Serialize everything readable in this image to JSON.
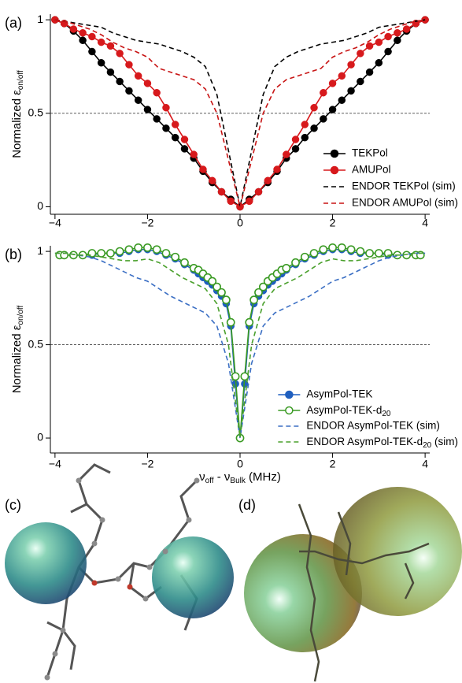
{
  "chart_data": [
    {
      "type": "line",
      "panel_label": "(a)",
      "ylabel": [
        "Normalized ε",
        "on/off"
      ],
      "xlim": [
        -4.1,
        4.1
      ],
      "ylim": [
        -0.04,
        1.03
      ],
      "xticks": [
        {
          "value": -4,
          "label": "−4"
        },
        {
          "value": -2,
          "label": "−2"
        },
        0,
        2,
        4
      ],
      "yticks": [
        0,
        0.5,
        1
      ],
      "reference_line": 0.5,
      "legend": "lower right",
      "series": [
        {
          "name": "TEKPol",
          "color": "#000000",
          "style": "solid",
          "marker": "filled",
          "x": [
            -4,
            -3.8,
            -3.6,
            -3.4,
            -3.2,
            -3,
            -2.8,
            -2.6,
            -2.4,
            -2.2,
            -2,
            -1.8,
            -1.6,
            -1.4,
            -1.2,
            -1,
            -0.8,
            -0.6,
            -0.4,
            -0.2,
            0,
            0.2,
            0.4,
            0.6,
            0.8,
            1,
            1.2,
            1.4,
            1.6,
            1.8,
            2,
            2.2,
            2.4,
            2.6,
            2.8,
            3,
            3.2,
            3.4,
            3.6,
            3.8,
            4
          ],
          "values": [
            1,
            0.98,
            0.94,
            0.89,
            0.83,
            0.77,
            0.72,
            0.67,
            0.62,
            0.57,
            0.52,
            0.47,
            0.42,
            0.37,
            0.31,
            0.26,
            0.19,
            0.13,
            0.08,
            0.04,
            0,
            0.04,
            0.08,
            0.13,
            0.19,
            0.26,
            0.31,
            0.37,
            0.42,
            0.47,
            0.52,
            0.57,
            0.62,
            0.67,
            0.72,
            0.77,
            0.83,
            0.89,
            0.94,
            0.98,
            1
          ]
        },
        {
          "name": "AMUPol",
          "color": "#d7191c",
          "style": "solid",
          "marker": "filled",
          "x": [
            -4,
            -3.8,
            -3.6,
            -3.4,
            -3.2,
            -3,
            -2.8,
            -2.6,
            -2.4,
            -2.2,
            -2,
            -1.8,
            -1.6,
            -1.4,
            -1.2,
            -1,
            -0.8,
            -0.6,
            -0.4,
            -0.2,
            0,
            0.2,
            0.4,
            0.6,
            0.8,
            1,
            1.2,
            1.4,
            1.6,
            1.8,
            2,
            2.2,
            2.4,
            2.6,
            2.8,
            3,
            3.2,
            3.4,
            3.6,
            3.8,
            4
          ],
          "values": [
            1,
            0.98,
            0.95,
            0.93,
            0.91,
            0.88,
            0.86,
            0.82,
            0.76,
            0.7,
            0.66,
            0.61,
            0.53,
            0.44,
            0.36,
            0.28,
            0.2,
            0.14,
            0.08,
            0.03,
            0,
            0.03,
            0.08,
            0.14,
            0.2,
            0.28,
            0.36,
            0.44,
            0.53,
            0.61,
            0.66,
            0.7,
            0.76,
            0.82,
            0.86,
            0.88,
            0.91,
            0.93,
            0.95,
            0.98,
            1
          ]
        },
        {
          "name": "ENDOR TEKPol (sim)",
          "color": "#000000",
          "style": "dashed",
          "marker": "none",
          "x": [
            -4,
            -3.75,
            -3.5,
            -3.25,
            -3,
            -2.75,
            -2.5,
            -2.25,
            -2,
            -1.75,
            -1.5,
            -1.25,
            -1,
            -0.75,
            -0.5,
            -0.25,
            0,
            0.25,
            0.5,
            0.75,
            1,
            1.25,
            1.5,
            1.75,
            2,
            2.25,
            2.5,
            2.75,
            3,
            3.25,
            3.5,
            3.75,
            4
          ],
          "values": [
            1,
            0.99,
            0.98,
            0.97,
            0.96,
            0.93,
            0.91,
            0.89,
            0.88,
            0.87,
            0.85,
            0.83,
            0.8,
            0.75,
            0.6,
            0.3,
            0,
            0.3,
            0.6,
            0.75,
            0.8,
            0.83,
            0.85,
            0.87,
            0.88,
            0.89,
            0.91,
            0.93,
            0.96,
            0.97,
            0.98,
            0.99,
            1
          ]
        },
        {
          "name": "ENDOR AMUPol (sim)",
          "color": "#c81414",
          "style": "dashed",
          "marker": "none",
          "x": [
            -4,
            -3.75,
            -3.5,
            -3.25,
            -3,
            -2.75,
            -2.5,
            -2.25,
            -2,
            -1.75,
            -1.5,
            -1.25,
            -1,
            -0.75,
            -0.5,
            -0.25,
            0,
            0.25,
            0.5,
            0.75,
            1,
            1.25,
            1.5,
            1.75,
            2,
            2.25,
            2.5,
            2.75,
            3,
            3.25,
            3.5,
            3.75,
            4
          ],
          "values": [
            1,
            0.99,
            0.97,
            0.95,
            0.92,
            0.88,
            0.85,
            0.83,
            0.8,
            0.74,
            0.72,
            0.7,
            0.68,
            0.63,
            0.5,
            0.25,
            0,
            0.25,
            0.5,
            0.63,
            0.68,
            0.7,
            0.72,
            0.74,
            0.8,
            0.83,
            0.85,
            0.88,
            0.92,
            0.95,
            0.97,
            0.99,
            1
          ]
        }
      ]
    },
    {
      "type": "line",
      "panel_label": "(b)",
      "ylabel": [
        "Normalized ε",
        "on/off"
      ],
      "xlabel": [
        "ν",
        "off",
        " - ν",
        "Bulk",
        " (MHz)"
      ],
      "xlim": [
        -4.1,
        4.1
      ],
      "ylim": [
        -0.08,
        1.03
      ],
      "xticks": [
        {
          "value": -4,
          "label": "−4"
        },
        {
          "value": -2,
          "label": "−2"
        },
        0,
        2,
        4
      ],
      "yticks": [
        0,
        0.5,
        1
      ],
      "reference_line": 0.5,
      "legend": "lower right",
      "series": [
        {
          "name": "AsymPol-TEK",
          "color": "#1f5fbf",
          "style": "solid",
          "marker": "filled",
          "x": [
            -3.9,
            -3.8,
            -3.6,
            -3.4,
            -3.2,
            -3,
            -2.8,
            -2.6,
            -2.4,
            -2.2,
            -2,
            -1.8,
            -1.6,
            -1.4,
            -1.2,
            -1,
            -0.9,
            -0.8,
            -0.7,
            -0.6,
            -0.5,
            -0.4,
            -0.3,
            -0.2,
            -0.1,
            0,
            0.1,
            0.2,
            0.3,
            0.4,
            0.5,
            0.6,
            0.7,
            0.8,
            0.9,
            1,
            1.2,
            1.4,
            1.6,
            1.8,
            2,
            2.2,
            2.4,
            2.6,
            2.8,
            3,
            3.2,
            3.4,
            3.6,
            3.8,
            3.9
          ],
          "values": [
            0.98,
            0.98,
            0.98,
            0.98,
            0.98,
            0.99,
            0.99,
            0.99,
            1,
            1.01,
            1.01,
            1,
            0.98,
            0.96,
            0.93,
            0.9,
            0.88,
            0.86,
            0.84,
            0.82,
            0.79,
            0.76,
            0.72,
            0.6,
            0.29,
            0,
            0.29,
            0.6,
            0.72,
            0.76,
            0.79,
            0.82,
            0.84,
            0.86,
            0.88,
            0.9,
            0.93,
            0.96,
            0.98,
            1,
            1.01,
            1.01,
            1,
            0.99,
            0.99,
            0.99,
            0.98,
            0.98,
            0.98,
            0.98,
            0.98
          ]
        },
        {
          "name": [
            "AsymPol-TEK-d",
            "20"
          ],
          "color": "#3a9a23",
          "style": "solid",
          "marker": "open",
          "x": [
            -3.9,
            -3.8,
            -3.6,
            -3.4,
            -3.2,
            -3,
            -2.8,
            -2.6,
            -2.4,
            -2.2,
            -2,
            -1.8,
            -1.6,
            -1.4,
            -1.2,
            -1,
            -0.9,
            -0.8,
            -0.7,
            -0.6,
            -0.5,
            -0.4,
            -0.3,
            -0.2,
            -0.1,
            0,
            0.1,
            0.2,
            0.3,
            0.4,
            0.5,
            0.6,
            0.7,
            0.8,
            0.9,
            1,
            1.2,
            1.4,
            1.6,
            1.8,
            2,
            2.2,
            2.4,
            2.6,
            2.8,
            3,
            3.2,
            3.4,
            3.6,
            3.8,
            3.9
          ],
          "values": [
            0.98,
            0.98,
            0.98,
            0.98,
            0.99,
            0.99,
            0.99,
            1,
            1.01,
            1.02,
            1.02,
            1.01,
            0.99,
            0.97,
            0.94,
            0.91,
            0.9,
            0.88,
            0.86,
            0.84,
            0.81,
            0.78,
            0.74,
            0.62,
            0.33,
            0,
            0.33,
            0.62,
            0.74,
            0.78,
            0.81,
            0.84,
            0.86,
            0.88,
            0.9,
            0.91,
            0.94,
            0.97,
            0.99,
            1.01,
            1.02,
            1.02,
            1.01,
            1,
            0.99,
            0.99,
            0.99,
            0.98,
            0.98,
            0.98,
            0.98
          ]
        },
        {
          "name": "ENDOR AsymPol-TEK (sim)",
          "color": "#3b6fc4",
          "style": "dashed",
          "marker": "none",
          "x": [
            -4,
            -3.75,
            -3.5,
            -3.25,
            -3,
            -2.75,
            -2.5,
            -2.25,
            -2,
            -1.75,
            -1.5,
            -1.25,
            -1,
            -0.75,
            -0.5,
            -0.25,
            0,
            0.25,
            0.5,
            0.75,
            1,
            1.25,
            1.5,
            1.75,
            2,
            2.25,
            2.5,
            2.75,
            3,
            3.25,
            3.5,
            3.75,
            4
          ],
          "values": [
            0.99,
            0.99,
            0.98,
            0.97,
            0.95,
            0.92,
            0.89,
            0.86,
            0.84,
            0.8,
            0.76,
            0.73,
            0.7,
            0.67,
            0.6,
            0.4,
            0,
            0.4,
            0.6,
            0.67,
            0.7,
            0.73,
            0.76,
            0.8,
            0.84,
            0.86,
            0.89,
            0.92,
            0.95,
            0.97,
            0.98,
            0.99,
            0.99
          ]
        },
        {
          "name": [
            "ENDOR AsymPol-TEK-d",
            "20",
            " (sim)"
          ],
          "color": "#4aa02c",
          "style": "dashed",
          "marker": "none",
          "x": [
            -4,
            -3.75,
            -3.5,
            -3.25,
            -3,
            -2.75,
            -2.5,
            -2.25,
            -2,
            -1.75,
            -1.5,
            -1.25,
            -1,
            -0.75,
            -0.5,
            -0.25,
            0,
            0.25,
            0.5,
            0.75,
            1,
            1.25,
            1.5,
            1.75,
            2,
            2.25,
            2.5,
            2.75,
            3,
            3.25,
            3.5,
            3.75,
            4
          ],
          "values": [
            0.99,
            0.99,
            0.98,
            0.98,
            0.97,
            0.96,
            0.95,
            0.95,
            0.96,
            0.94,
            0.9,
            0.86,
            0.83,
            0.8,
            0.72,
            0.5,
            0,
            0.5,
            0.72,
            0.8,
            0.83,
            0.86,
            0.9,
            0.94,
            0.96,
            0.95,
            0.95,
            0.96,
            0.97,
            0.98,
            0.98,
            0.99,
            0.99
          ]
        }
      ]
    }
  ],
  "images": [
    {
      "label": "(c)"
    },
    {
      "label": "(d)"
    }
  ]
}
